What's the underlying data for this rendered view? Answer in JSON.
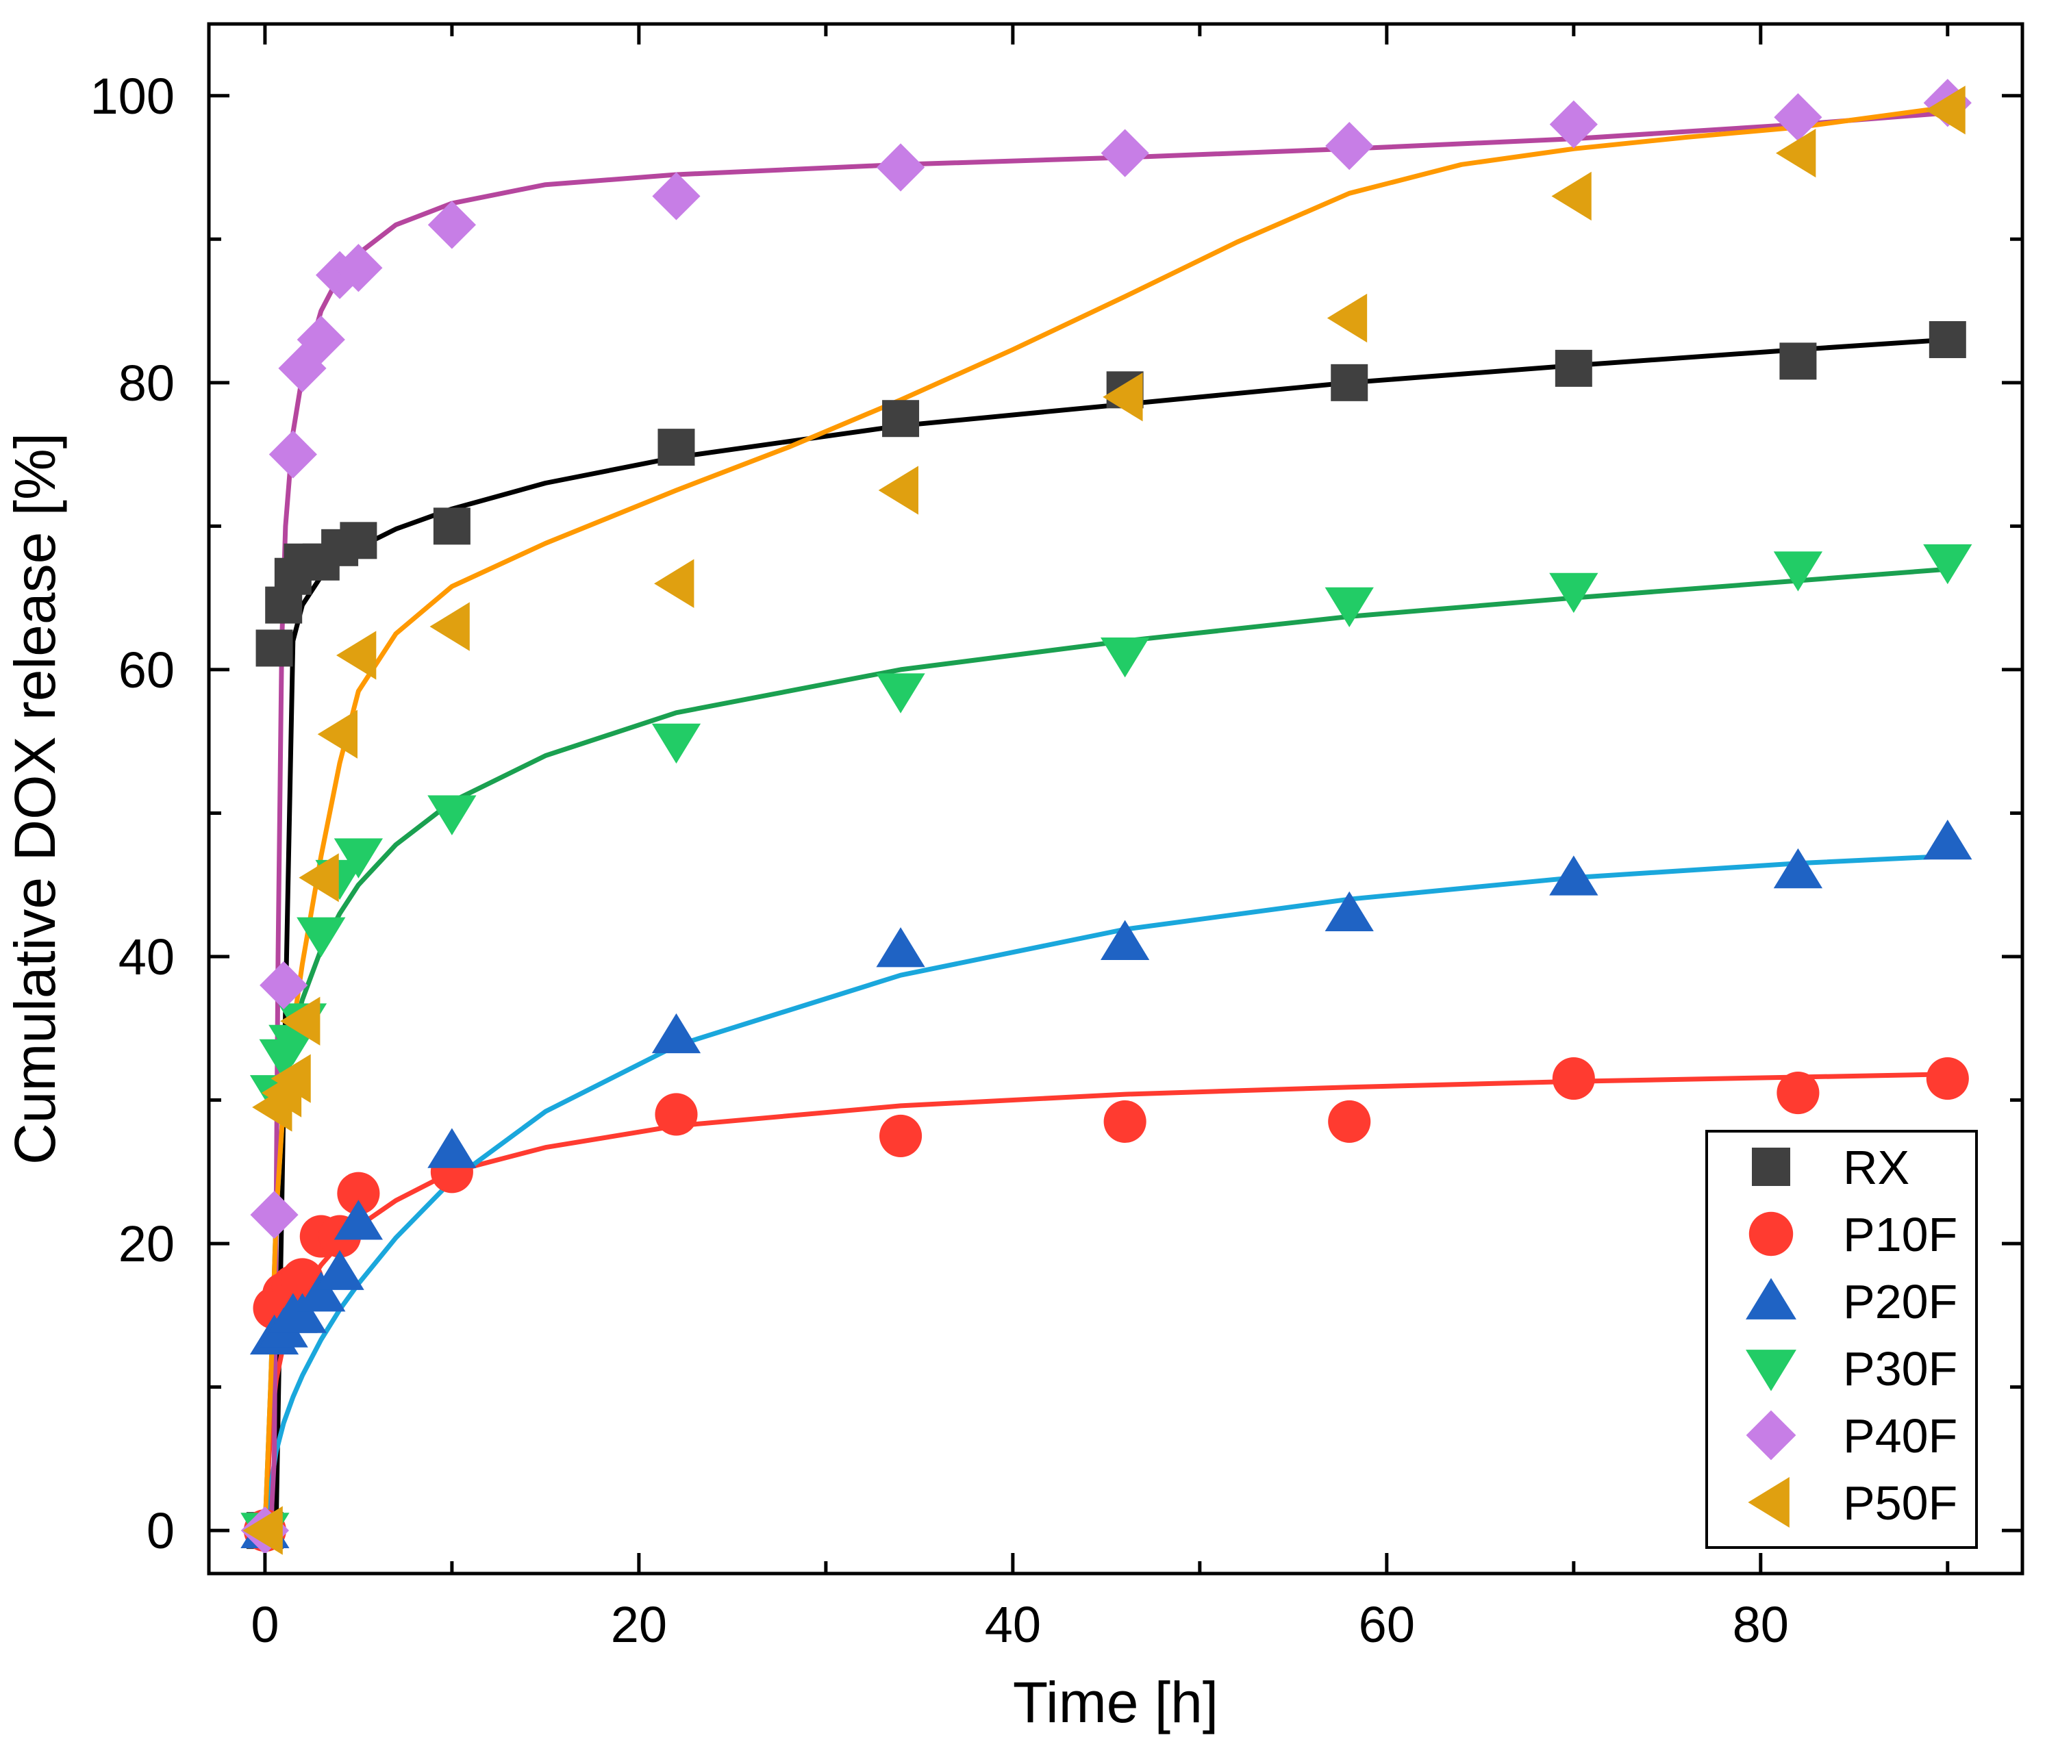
{
  "chart_data": {
    "type": "scatter",
    "title": "",
    "xlabel": "Time [h]",
    "ylabel": "Cumulative DOX release [%]",
    "xlim": [
      -3,
      94
    ],
    "ylim": [
      -3,
      105
    ],
    "xticks": [
      0,
      20,
      40,
      60,
      80
    ],
    "yticks": [
      0,
      20,
      40,
      60,
      80,
      100
    ],
    "xtick_labels": [
      "0",
      "20",
      "40",
      "60",
      "80"
    ],
    "ytick_labels": [
      "0",
      "20",
      "40",
      "60",
      "80",
      "100"
    ],
    "grid": false,
    "legend_position": "bottom-right",
    "series": [
      {
        "name": "RX",
        "marker": "square",
        "color": "#404040",
        "line_color": "#000000",
        "x": [
          0,
          0.5,
          1,
          1.5,
          2,
          3,
          4,
          5,
          10,
          22,
          34,
          46,
          58,
          70,
          82,
          90
        ],
        "y": [
          0,
          61.5,
          64.5,
          66.5,
          67.5,
          67.5,
          68.5,
          69,
          70,
          75.5,
          77.5,
          79.5,
          80,
          81,
          81.5,
          83
        ],
        "fit_x": [
          0,
          0.3,
          0.6,
          1,
          1.5,
          2,
          3,
          4,
          5,
          7,
          10,
          15,
          22,
          34,
          46,
          58,
          70,
          82,
          90
        ],
        "fit_y": [
          0,
          0,
          0.5,
          30,
          62,
          64.5,
          66.5,
          67.5,
          68.5,
          69.8,
          71.2,
          73,
          74.8,
          77,
          78.5,
          80,
          81.2,
          82.3,
          83
        ]
      },
      {
        "name": "P10F",
        "marker": "circle",
        "color": "#ff3b30",
        "line_color": "#ff3b30",
        "x": [
          0,
          0.5,
          1,
          1.5,
          2,
          3,
          4,
          5,
          10,
          22,
          34,
          46,
          58,
          70,
          82,
          90
        ],
        "y": [
          0,
          15.5,
          16.5,
          17,
          17.5,
          20.5,
          20.5,
          23.5,
          25,
          29,
          27.5,
          28.5,
          28.5,
          31.5,
          30.5,
          31.5
        ],
        "fit_x": [
          0,
          0.3,
          0.6,
          1,
          1.5,
          2,
          3,
          4,
          5,
          7,
          10,
          15,
          22,
          34,
          46,
          58,
          70,
          82,
          90
        ],
        "fit_y": [
          0,
          7,
          10.5,
          13,
          15,
          16.5,
          18.5,
          20,
          21.2,
          23,
          25,
          26.7,
          28.2,
          29.6,
          30.4,
          30.9,
          31.3,
          31.6,
          31.8
        ]
      },
      {
        "name": "P20F",
        "marker": "triangle-up",
        "color": "#1f63c4",
        "line_color": "#1aa7dc",
        "x": [
          0,
          0.5,
          1,
          1.5,
          2,
          3,
          4,
          5,
          10,
          22,
          34,
          46,
          58,
          70,
          82,
          90
        ],
        "y": [
          0,
          13.5,
          14,
          15,
          15,
          16.5,
          18,
          21.5,
          26.5,
          34.5,
          40.5,
          41,
          43,
          45.5,
          46,
          48
        ],
        "fit_x": [
          0,
          0.3,
          0.6,
          1,
          1.5,
          2,
          3,
          4,
          5,
          7,
          10,
          15,
          22,
          34,
          46,
          58,
          70,
          82,
          90
        ],
        "fit_y": [
          0,
          3,
          5.5,
          7.5,
          9.3,
          10.8,
          13.3,
          15.4,
          17.2,
          20.4,
          24.4,
          29.2,
          33.8,
          38.7,
          41.9,
          44,
          45.5,
          46.5,
          47
        ]
      },
      {
        "name": "P30F",
        "marker": "triangle-down",
        "color": "#22cc66",
        "line_color": "#1aa050",
        "x": [
          0,
          0.5,
          1,
          1.5,
          2,
          3,
          4,
          5,
          10,
          22,
          34,
          46,
          58,
          70,
          82,
          90
        ],
        "y": [
          0,
          30.5,
          33,
          34,
          35.5,
          41.5,
          45.5,
          47,
          50,
          55,
          58.5,
          61,
          64.5,
          65.5,
          67,
          67.5
        ],
        "fit_x": [
          0,
          0.3,
          0.6,
          1,
          1.5,
          2,
          3,
          4,
          5,
          7,
          10,
          15,
          22,
          34,
          46,
          58,
          70,
          82,
          90
        ],
        "fit_y": [
          0,
          10,
          22,
          30,
          34.5,
          37,
          40.5,
          43,
          45,
          47.8,
          50.8,
          54,
          57,
          60,
          62,
          63.7,
          65,
          66.2,
          67
        ]
      },
      {
        "name": "P40F",
        "marker": "diamond",
        "color": "#c77ee6",
        "line_color": "#b5469e",
        "x": [
          0,
          0.5,
          1,
          1.5,
          2,
          3,
          4,
          5,
          10,
          22,
          34,
          46,
          58,
          70,
          82,
          90
        ],
        "y": [
          0,
          22,
          38,
          75,
          81,
          83,
          87.5,
          88,
          91,
          93,
          95,
          96,
          96.5,
          98,
          98.5,
          99.5
        ],
        "fit_x": [
          0,
          0.3,
          0.5,
          0.7,
          0.9,
          1.1,
          1.5,
          2,
          3,
          4,
          5,
          7,
          10,
          15,
          22,
          34,
          46,
          58,
          70,
          82,
          90
        ],
        "fit_y": [
          0,
          0,
          5,
          40,
          62,
          70,
          76.5,
          80.5,
          85,
          87.5,
          89,
          91,
          92.5,
          93.8,
          94.5,
          95.2,
          95.7,
          96.3,
          97,
          98,
          98.8
        ]
      },
      {
        "name": "P50F",
        "marker": "triangle-left",
        "color": "#e0a010",
        "line_color": "#ff9900",
        "x": [
          0,
          0.5,
          1,
          1.5,
          2,
          3,
          4,
          5,
          10,
          22,
          34,
          46,
          58,
          70,
          82,
          90
        ],
        "y": [
          0,
          29.5,
          30.5,
          31.5,
          35.5,
          45.5,
          55.5,
          61,
          63,
          66,
          72.5,
          79,
          84.5,
          93,
          96,
          99
        ],
        "fit_x": [
          0,
          0.3,
          0.6,
          1,
          1.5,
          2,
          3,
          4,
          5,
          7,
          10,
          15,
          22,
          28,
          34,
          40,
          46,
          52,
          58,
          64,
          70,
          76,
          82,
          90
        ],
        "fit_y": [
          0,
          10,
          22,
          30,
          35,
          39.5,
          47,
          53.5,
          58.5,
          62.5,
          65.8,
          68.8,
          72.5,
          75.5,
          78.8,
          82.3,
          86,
          89.8,
          93.2,
          95.2,
          96.3,
          97.1,
          97.8,
          99.2
        ]
      }
    ]
  }
}
